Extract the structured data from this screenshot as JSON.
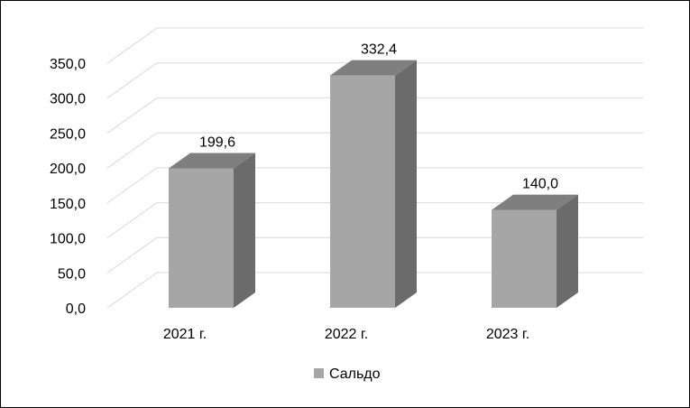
{
  "chart_data": {
    "type": "bar",
    "style": "3d-column",
    "categories": [
      "2021 г.",
      "2022 г.",
      "2023 г."
    ],
    "series": [
      {
        "name": "Сальдо",
        "values": [
          199.6,
          332.4,
          140.0
        ],
        "data_labels": [
          "199,6",
          "332,4",
          "140,0"
        ]
      }
    ],
    "ylim": [
      0,
      350
    ],
    "yticks": [
      "0,0",
      "50,0",
      "100,0",
      "150,0",
      "200,0",
      "250,0",
      "300,0",
      "350,0"
    ],
    "grid": true,
    "legend_position": "bottom",
    "colors": {
      "bar_front": "#a6a6a6",
      "bar_top": "#7f7f7f",
      "bar_side": "#6b6b6b",
      "gridline": "#d9d9d9"
    }
  }
}
